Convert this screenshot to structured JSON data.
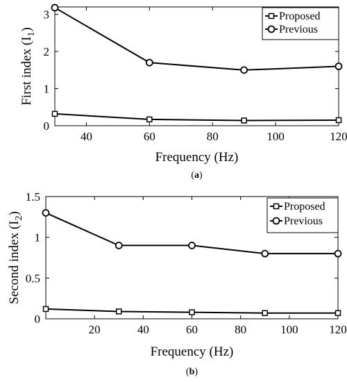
{
  "chart_data": [
    {
      "type": "line",
      "panel_label": "a",
      "xlabel": "Frequency (Hz)",
      "ylabel": "First index (I",
      "ylabel_sub": "1",
      "ylabel_end": ")",
      "xlim": [
        30,
        120
      ],
      "ylim": [
        0,
        3.2
      ],
      "xticks": [
        40,
        60,
        80,
        100,
        120
      ],
      "yticks": [
        0,
        1,
        2,
        3
      ],
      "grid": false,
      "legend_position": "top-right",
      "series": [
        {
          "name": "Proposed",
          "marker": "square",
          "x": [
            30,
            60,
            90,
            120
          ],
          "y": [
            0.32,
            0.17,
            0.14,
            0.15
          ]
        },
        {
          "name": "Previous",
          "marker": "circle",
          "x": [
            30,
            60,
            90,
            120
          ],
          "y": [
            3.18,
            1.7,
            1.5,
            1.6
          ]
        }
      ]
    },
    {
      "type": "line",
      "panel_label": "b",
      "xlabel": "Frequency (Hz)",
      "ylabel": "Second index (I",
      "ylabel_sub": "2",
      "ylabel_end": ")",
      "xlim": [
        0,
        120
      ],
      "ylim": [
        0,
        1.5
      ],
      "xticks": [
        20,
        40,
        60,
        80,
        100,
        120
      ],
      "yticks": [
        0,
        0.5,
        1,
        1.5
      ],
      "grid": false,
      "legend_position": "top-right",
      "series": [
        {
          "name": "Proposed",
          "marker": "square",
          "x": [
            0,
            30,
            60,
            90,
            120
          ],
          "y": [
            0.12,
            0.09,
            0.08,
            0.07,
            0.07
          ]
        },
        {
          "name": "Previous",
          "marker": "circle",
          "x": [
            0,
            30,
            60,
            90,
            120
          ],
          "y": [
            1.3,
            0.9,
            0.9,
            0.8,
            0.8
          ]
        }
      ]
    }
  ]
}
